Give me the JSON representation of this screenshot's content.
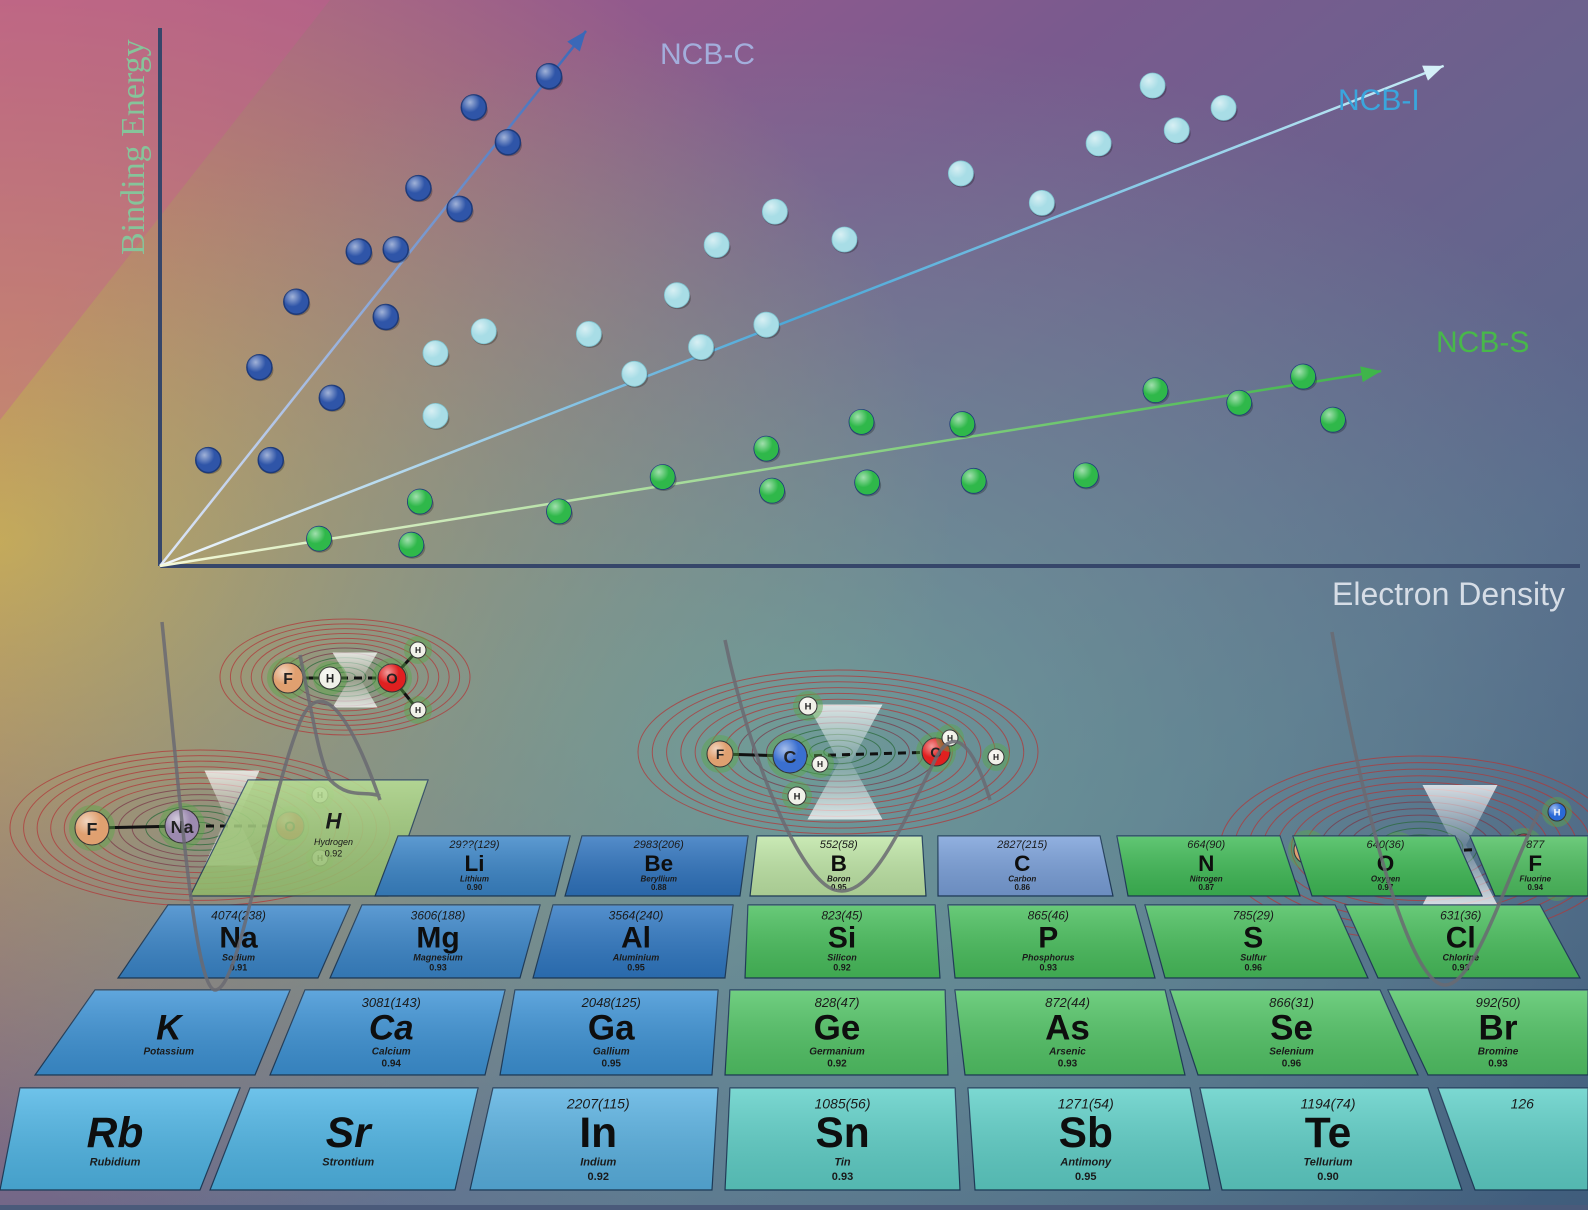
{
  "chart_data": {
    "type": "scatter",
    "xlabel": "Electron Density",
    "ylabel": "Binding Energy",
    "xlim": [
      0,
      100
    ],
    "ylim": [
      0,
      100
    ],
    "grid": false,
    "series": [
      {
        "name": "NCB-C",
        "color": "#2f55a8",
        "trend_end": [
          30,
          98
        ],
        "points": [
          [
            3.4,
            19.4
          ],
          [
            7.8,
            19.4
          ],
          [
            7,
            36.4
          ],
          [
            12.1,
            30.8
          ],
          [
            9.6,
            48.4
          ],
          [
            14,
            57.6
          ],
          [
            15.9,
            45.6
          ],
          [
            16.6,
            58
          ],
          [
            18.2,
            69.2
          ],
          [
            21.1,
            65.4
          ],
          [
            22.1,
            84
          ],
          [
            24.5,
            77.6
          ],
          [
            27.4,
            89.7
          ]
        ]
      },
      {
        "name": "NCB-I",
        "color": "#a8dde6",
        "trend_end": [
          90.4,
          91.6
        ],
        "points": [
          [
            19.4,
            27.5
          ],
          [
            19.4,
            39
          ],
          [
            22.8,
            43
          ],
          [
            30.2,
            42.5
          ],
          [
            33.4,
            35.2
          ],
          [
            36.4,
            49.6
          ],
          [
            38.1,
            40.1
          ],
          [
            39.2,
            58.8
          ],
          [
            42.7,
            44.2
          ],
          [
            43.3,
            64.9
          ],
          [
            48.2,
            59.8
          ],
          [
            56.4,
            71.9
          ],
          [
            62.1,
            66.5
          ],
          [
            66.1,
            77.4
          ],
          [
            69.9,
            88
          ],
          [
            71.6,
            79.8
          ],
          [
            74.9,
            83.9
          ]
        ]
      },
      {
        "name": "NCB-S",
        "color": "#2fb84a",
        "trend_end": [
          86,
          35.7
        ],
        "points": [
          [
            11.2,
            5
          ],
          [
            17.7,
            3.9
          ],
          [
            18.3,
            11.8
          ],
          [
            28.1,
            10
          ],
          [
            35.4,
            16.3
          ],
          [
            42.7,
            21.5
          ],
          [
            43.1,
            13.8
          ],
          [
            49.4,
            26.4
          ],
          [
            49.8,
            15.3
          ],
          [
            56.5,
            26
          ],
          [
            57.3,
            15.6
          ],
          [
            65.2,
            16.6
          ],
          [
            70.1,
            32.2
          ],
          [
            76,
            29.9
          ],
          [
            80.5,
            34.7
          ],
          [
            82.6,
            26.8
          ]
        ]
      }
    ],
    "annotations": [
      {
        "shape": "F-H···O",
        "atoms": [
          {
            "el": "F",
            "c": "#e0a070"
          },
          {
            "el": "H",
            "c": "#f0f0e8"
          },
          {
            "el": "O",
            "c": "#e02020"
          },
          {
            "el": "H",
            "c": "#f0f0e8"
          },
          {
            "el": "H",
            "c": "#f0f0e8"
          }
        ]
      },
      {
        "shape": "F-Na···O",
        "atoms": [
          {
            "el": "F",
            "c": "#e0a070"
          },
          {
            "el": "Na",
            "c": "#9c8ab0"
          },
          {
            "el": "O",
            "c": "#e02020"
          },
          {
            "el": "H",
            "c": "#f0f0e8"
          },
          {
            "el": "H",
            "c": "#f0f0e8"
          }
        ]
      },
      {
        "shape": "F-C···O",
        "atoms": [
          {
            "el": "F",
            "c": "#e0a070"
          },
          {
            "el": "C",
            "c": "#3a6fd0"
          },
          {
            "el": "O",
            "c": "#e02020"
          },
          {
            "el": "H",
            "c": "#f0f0e8"
          },
          {
            "el": "H",
            "c": "#f0f0e8"
          },
          {
            "el": "H",
            "c": "#f0f0e8"
          },
          {
            "el": "H",
            "c": "#f0f0e8"
          },
          {
            "el": "H",
            "c": "#f0f0e8"
          }
        ]
      },
      {
        "shape": "F-Cl···O",
        "atoms": [
          {
            "el": "F",
            "c": "#e0a070"
          },
          {
            "el": "Cl",
            "c": "#e03030"
          },
          {
            "el": "O",
            "c": "#e02020"
          },
          {
            "el": "H",
            "c": "#2a6ad8"
          },
          {
            "el": "H",
            "c": "#2a6ad8"
          }
        ]
      }
    ]
  },
  "periodic_table": {
    "row1": [
      {
        "symbol": "H",
        "value": "",
        "name": "Hydrogen",
        "score": "0.92",
        "color": "#a6d57a"
      },
      {
        "symbol": "Li",
        "value": "29??(129)",
        "name": "Lithium",
        "score": "0.90",
        "color": "#3a85c8"
      },
      {
        "symbol": "Be",
        "value": "2983(206)",
        "name": "Beryllium",
        "score": "0.88",
        "color": "#2f74bf"
      },
      {
        "symbol": "B",
        "value": "552(58)",
        "name": "Boron",
        "score": "0.95",
        "color": "#bfe6a6"
      },
      {
        "symbol": "C",
        "value": "2827(215)",
        "name": "Carbon",
        "score": "0.86",
        "color": "#7aa0da"
      },
      {
        "symbol": "N",
        "value": "664(90)",
        "name": "Nitrogen",
        "score": "0.87",
        "color": "#3fbb56"
      },
      {
        "symbol": "O",
        "value": "640(36)",
        "name": "Oxygen",
        "score": "0.97",
        "color": "#3fbb56"
      },
      {
        "symbol": "F",
        "value": "877",
        "name": "Fluorine",
        "score": "0.94",
        "color": "#4ec060"
      }
    ],
    "row2": [
      {
        "symbol": "Na",
        "value": "4074(238)",
        "name": "Sodium",
        "score": "0.91",
        "color": "#3a86ca"
      },
      {
        "symbol": "Mg",
        "value": "3606(188)",
        "name": "Magnesium",
        "score": "0.93",
        "color": "#3a86ca"
      },
      {
        "symbol": "Al",
        "value": "3564(240)",
        "name": "Aluminium",
        "score": "0.95",
        "color": "#2f78c3"
      },
      {
        "symbol": "Si",
        "value": "823(45)",
        "name": "Silicon",
        "score": "0.92",
        "color": "#48bf5c"
      },
      {
        "symbol": "P",
        "value": "865(46)",
        "name": "Phosphorus",
        "score": "0.93",
        "color": "#48bf5c"
      },
      {
        "symbol": "S",
        "value": "785(29)",
        "name": "Sulfur",
        "score": "0.96",
        "color": "#48bf5c"
      },
      {
        "symbol": "Cl",
        "value": "631(36)",
        "name": "Chlorine",
        "score": "0.93",
        "color": "#48bf5c"
      }
    ],
    "row3": [
      {
        "symbol": "K",
        "value": "",
        "name": "Potassium",
        "score": "",
        "color": "#3d93d6"
      },
      {
        "symbol": "Ca",
        "value": "3081(143)",
        "name": "Calcium",
        "score": "0.94",
        "color": "#3d93d6"
      },
      {
        "symbol": "Ga",
        "value": "2048(125)",
        "name": "Gallium",
        "score": "0.95",
        "color": "#3d93d6"
      },
      {
        "symbol": "Ge",
        "value": "828(47)",
        "name": "Germanium",
        "score": "0.92",
        "color": "#52c566"
      },
      {
        "symbol": "As",
        "value": "872(44)",
        "name": "Arsenic",
        "score": "0.93",
        "color": "#52c566"
      },
      {
        "symbol": "Se",
        "value": "866(31)",
        "name": "Selenium",
        "score": "0.96",
        "color": "#52c566"
      },
      {
        "symbol": "Br",
        "value": "992(50)",
        "name": "Bromine",
        "score": "0.93",
        "color": "#52c566"
      }
    ],
    "row4": [
      {
        "symbol": "Rb",
        "value": "",
        "name": "Rubidium",
        "score": "",
        "color": "#4fb6e6"
      },
      {
        "symbol": "Sr",
        "value": "",
        "name": "Strontium",
        "score": "",
        "color": "#4fb6e6"
      },
      {
        "symbol": "In",
        "value": "2207(115)",
        "name": "Indium",
        "score": "0.92",
        "color": "#5ab2e2"
      },
      {
        "symbol": "Sn",
        "value": "1085(56)",
        "name": "Tin",
        "score": "0.93",
        "color": "#5fd0c8"
      },
      {
        "symbol": "Sb",
        "value": "1271(54)",
        "name": "Antimony",
        "score": "0.95",
        "color": "#5fd0c8"
      },
      {
        "symbol": "Te",
        "value": "1194(74)",
        "name": "Tellurium",
        "score": "0.90",
        "color": "#5fd0c8"
      },
      {
        "symbol": "",
        "value": "126",
        "name": "",
        "score": "",
        "color": "#5fd0c8"
      }
    ]
  }
}
